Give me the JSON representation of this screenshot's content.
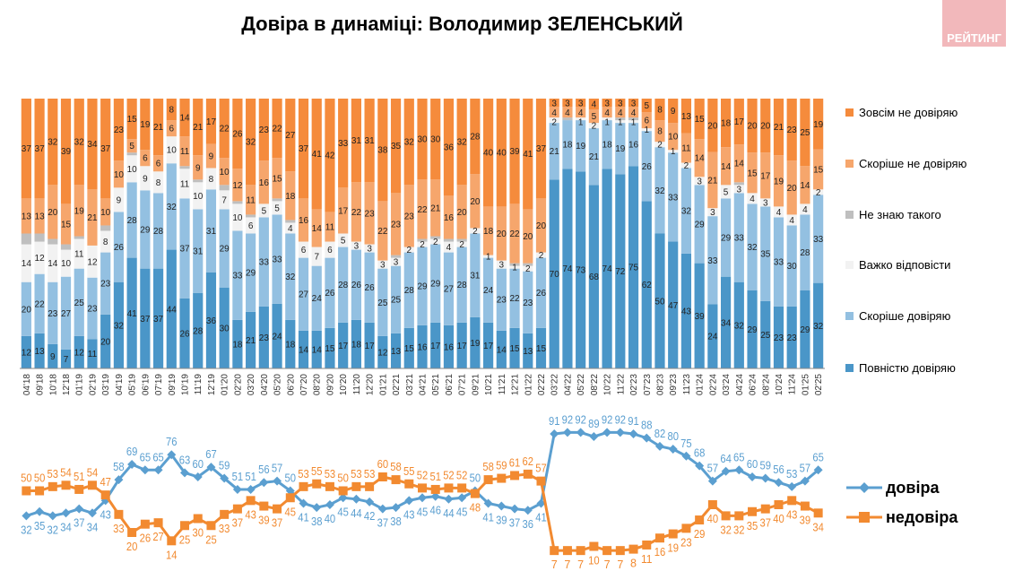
{
  "title": "Довіра в динаміці: Володимир ЗЕЛЕНСЬКИЙ",
  "logo": "РЕЙТИНГ",
  "chart_data": [
    {
      "type": "bar",
      "stacked": true,
      "categories": [
        "04'18",
        "09'18",
        "10'18",
        "12'18",
        "01'19",
        "02'19",
        "03'19",
        "04'19",
        "05'19",
        "06'19",
        "07'19",
        "09'19",
        "10'19",
        "11'19",
        "12'19",
        "01'20",
        "02'20",
        "03'20",
        "04'20",
        "05'20",
        "06'20",
        "07'20",
        "08'20",
        "09'20",
        "10'20",
        "11'20",
        "12'20",
        "01'21",
        "02'21",
        "03'21",
        "04'21",
        "05'21",
        "06'21",
        "07'21",
        "09'21",
        "10'21",
        "11'21",
        "12'21",
        "01'22",
        "02'22",
        "03'22",
        "04'22",
        "05'22",
        "08'22",
        "10'22",
        "11'22",
        "02'23",
        "07'23",
        "08'23",
        "09'23",
        "11'23",
        "01'24",
        "02'24",
        "03'24",
        "04'24",
        "06'24",
        "08'24",
        "10'24",
        "11'24",
        "01'25",
        "02'25"
      ],
      "legend_position": "right",
      "series": [
        {
          "name": "Повністю довіряю",
          "color": "#4a96c8",
          "values": [
            12,
            13,
            9,
            7,
            12,
            11,
            20,
            32,
            41,
            37,
            37,
            44,
            26,
            28,
            36,
            30,
            18,
            21,
            23,
            24,
            18,
            14,
            14,
            15,
            17,
            18,
            17,
            12,
            13,
            15,
            16,
            17,
            16,
            17,
            19,
            17,
            14,
            15,
            13,
            15,
            70,
            74,
            73,
            68,
            74,
            72,
            75,
            62,
            50,
            47,
            43,
            39,
            24,
            34,
            32,
            29,
            25,
            23,
            23,
            29,
            32
          ]
        },
        {
          "name": "Скоріше довіряю",
          "color": "#93c0e1",
          "values": [
            20,
            22,
            23,
            27,
            25,
            23,
            23,
            26,
            28,
            29,
            28,
            32,
            37,
            31,
            31,
            29,
            33,
            29,
            33,
            33,
            32,
            27,
            24,
            26,
            28,
            26,
            26,
            25,
            25,
            28,
            29,
            29,
            27,
            28,
            31,
            24,
            23,
            22,
            23,
            26,
            21,
            18,
            19,
            21,
            18,
            19,
            16,
            26,
            32,
            33,
            32,
            29,
            33,
            29,
            33,
            32,
            35,
            33,
            30,
            28,
            33
          ]
        },
        {
          "name": "Важко відповісти",
          "color": "#f2f2f2",
          "values": [
            14,
            12,
            14,
            10,
            11,
            12,
            8,
            9,
            10,
            9,
            8,
            10,
            11,
            10,
            8,
            7,
            10,
            6,
            5,
            5,
            4,
            6,
            7,
            6,
            5,
            3,
            3,
            3,
            3,
            2,
            2,
            2,
            4,
            2,
            2,
            1,
            3,
            1,
            2,
            2,
            2,
            null,
            1,
            2,
            1,
            1,
            1,
            1,
            2,
            1,
            2,
            3,
            3,
            5,
            3,
            4,
            3,
            4,
            4,
            4,
            2
          ]
        },
        {
          "name": "Не знаю такого",
          "color": "#bfbfbf",
          "values": [
            null,
            null,
            null,
            null,
            null,
            null,
            null,
            null,
            null,
            null,
            null,
            null,
            null,
            null,
            null,
            null,
            null,
            null,
            null,
            null,
            null,
            null,
            null,
            null,
            null,
            null,
            null,
            null,
            null,
            null,
            null,
            null,
            null,
            null,
            null,
            null,
            null,
            null,
            null,
            null,
            null,
            null,
            null,
            null,
            null,
            null,
            null,
            null,
            null,
            null,
            null,
            null,
            null,
            null,
            null,
            null,
            null,
            null,
            null,
            null,
            null
          ]
        },
        {
          "name": "Скоріше не довіряю",
          "color": "#f6a66c",
          "values": [
            13,
            13,
            20,
            15,
            19,
            21,
            10,
            10,
            5,
            6,
            6,
            6,
            11,
            9,
            9,
            10,
            12,
            11,
            16,
            15,
            18,
            16,
            14,
            11,
            17,
            22,
            23,
            22,
            23,
            23,
            22,
            21,
            16,
            20,
            20,
            18,
            20,
            22,
            20,
            20,
            4,
            4,
            4,
            5,
            4,
            4,
            4,
            6,
            8,
            10,
            11,
            14,
            21,
            14,
            14,
            15,
            17,
            19,
            20,
            14,
            15
          ]
        },
        {
          "name": "Зовсім не довіряю",
          "color": "#f58b3c",
          "values": [
            37,
            37,
            32,
            39,
            32,
            34,
            37,
            23,
            15,
            19,
            21,
            8,
            14,
            21,
            17,
            22,
            26,
            32,
            23,
            22,
            27,
            37,
            41,
            42,
            33,
            31,
            31,
            38,
            35,
            32,
            30,
            30,
            36,
            32,
            28,
            40,
            40,
            39,
            41,
            37,
            3,
            3,
            3,
            4,
            3,
            3,
            3,
            5,
            8,
            9,
            13,
            15,
            20,
            18,
            17,
            20,
            20,
            21,
            23,
            25,
            19
          ]
        }
      ]
    },
    {
      "type": "line",
      "categories_ref": "same as bar chart",
      "legend_position": "right",
      "series": [
        {
          "name": "довіра",
          "color": "#5b9fd0",
          "marker": "diamond",
          "values": [
            32,
            35,
            32,
            34,
            37,
            34,
            43,
            58,
            69,
            65,
            65,
            76,
            63,
            60,
            67,
            59,
            51,
            51,
            56,
            57,
            50,
            41,
            38,
            40,
            45,
            44,
            42,
            37,
            38,
            43,
            45,
            46,
            44,
            45,
            50,
            41,
            39,
            37,
            36,
            41,
            91,
            92,
            92,
            89,
            92,
            92,
            91,
            88,
            82,
            80,
            75,
            68,
            57,
            64,
            65,
            60,
            59,
            56,
            53,
            57,
            65
          ]
        },
        {
          "name": "недовіра",
          "color": "#f28a30",
          "marker": "square",
          "values": [
            50,
            50,
            53,
            54,
            51,
            54,
            47,
            33,
            20,
            26,
            27,
            14,
            25,
            30,
            25,
            33,
            37,
            43,
            39,
            37,
            45,
            53,
            55,
            53,
            50,
            53,
            53,
            60,
            58,
            55,
            52,
            51,
            52,
            52,
            48,
            58,
            59,
            61,
            62,
            57,
            7,
            7,
            7,
            10,
            7,
            7,
            8,
            11,
            16,
            19,
            23,
            29,
            40,
            32,
            32,
            35,
            37,
            40,
            43,
            39,
            34
          ]
        }
      ]
    }
  ]
}
